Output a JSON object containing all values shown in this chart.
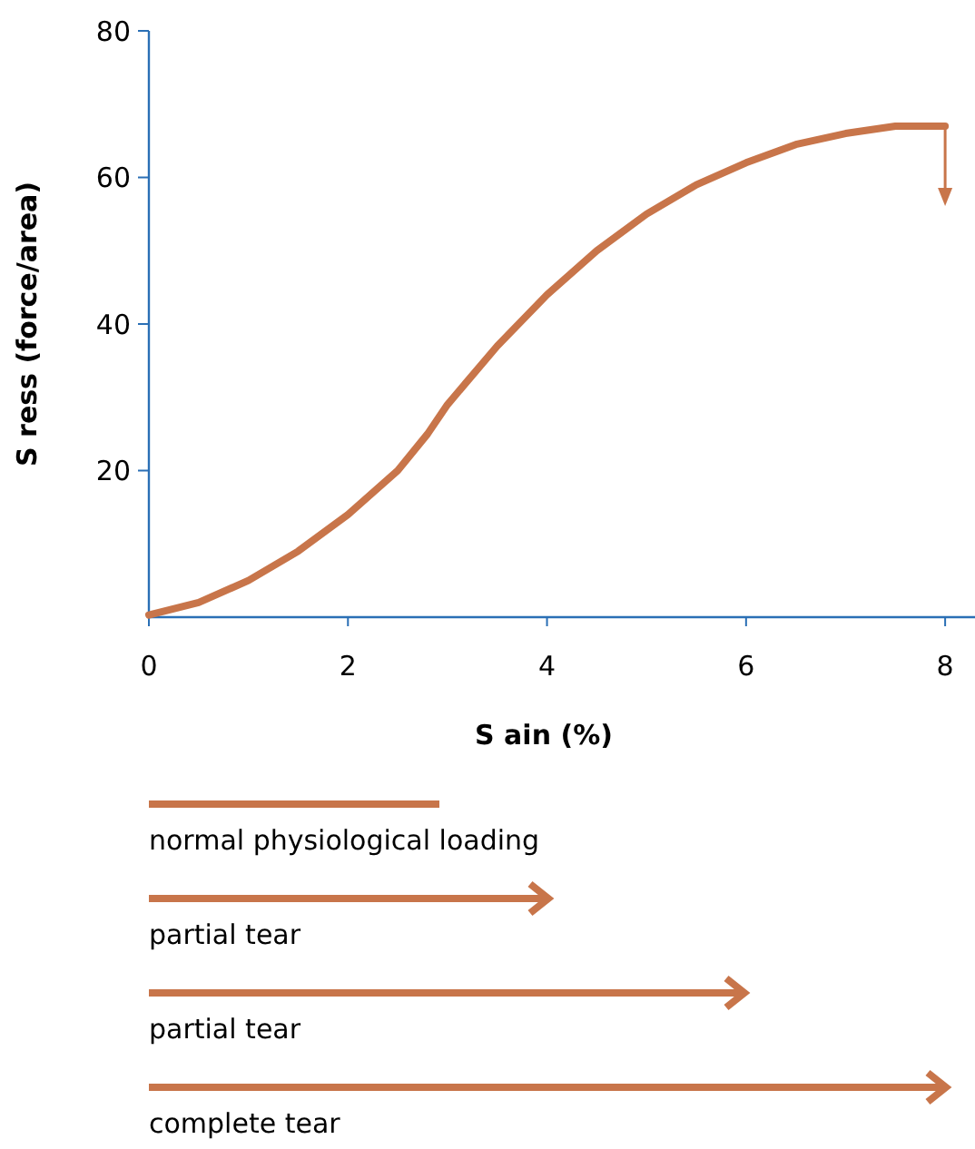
{
  "chart_data": {
    "type": "line",
    "xlabel": "S   ain (%)",
    "ylabel": "S  ress (force/area)",
    "xlim": [
      0,
      8.3
    ],
    "ylim": [
      0,
      80
    ],
    "xticks": [
      0,
      2,
      4,
      6,
      8
    ],
    "yticks": [
      20,
      40,
      60,
      80
    ],
    "grid": false,
    "line_style": "solid",
    "series": [
      {
        "color": "#c8754a",
        "x": [
          0,
          0.5,
          1,
          1.5,
          2,
          2.5,
          2.8,
          3,
          3.5,
          4,
          4.5,
          5,
          5.5,
          6,
          6.5,
          7,
          7.5,
          8
        ],
        "values": [
          0.3,
          2,
          5,
          9,
          14,
          20,
          25,
          29,
          37,
          44,
          50,
          55,
          59,
          62,
          64.5,
          66,
          67,
          67
        ]
      }
    ],
    "annotations": [
      "normal physiological loading",
      "partial tear",
      "partial tear",
      "complete tear"
    ]
  }
}
